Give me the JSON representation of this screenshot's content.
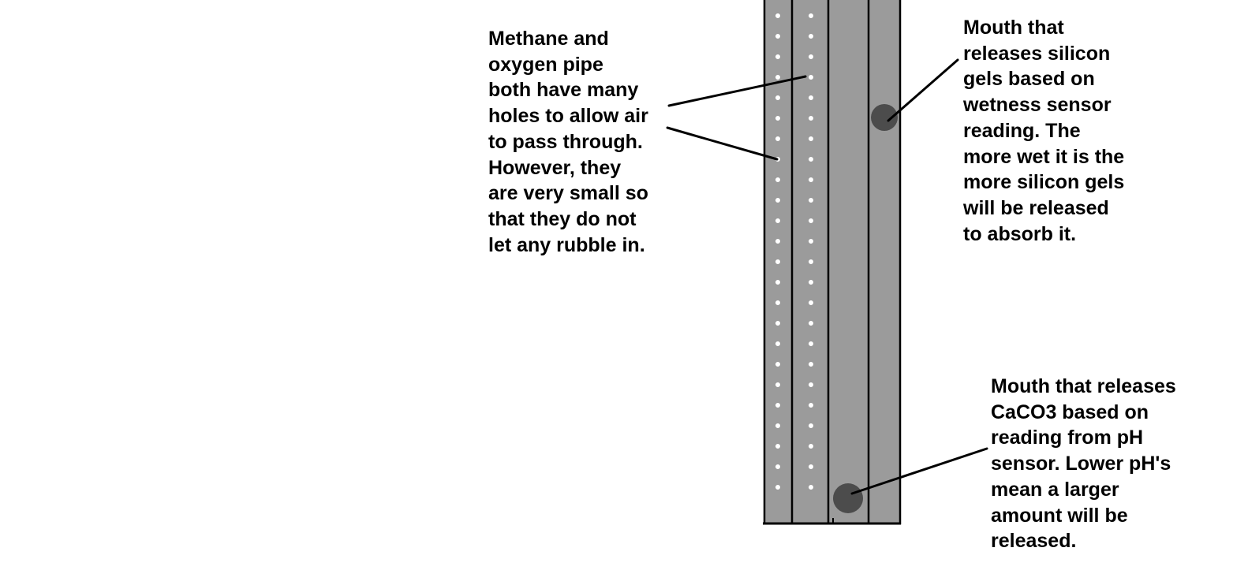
{
  "annotations": {
    "pipes": "Methane and\noxygen pipe\nboth have many\nholes to allow air\nto pass through.\nHowever, they\nare very small so\nthat they do not\nlet any rubble in.",
    "silicon_mouth": "Mouth that\nreleases silicon\ngels based on\nwetness sensor\nreading. The\nmore wet it is the\nmore silicon gels\nwill be released\nto absorb it.",
    "caco3_mouth": "Mouth that releases\nCaCO3 based on\nreading from pH\nsensor. Lower pH's\nmean a larger\namount will be\nreleased."
  },
  "colors": {
    "pipe_fill": "#9b9b9b",
    "outline": "#000000",
    "hole_fill": "#ffffff",
    "mouth_fill": "#4c4c4c",
    "background": "#ffffff",
    "text": "#000000"
  }
}
